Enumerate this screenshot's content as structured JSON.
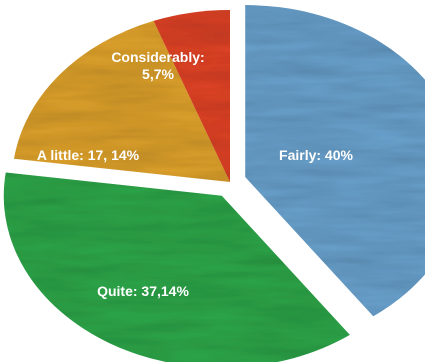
{
  "chart_data": {
    "type": "pie",
    "slices": [
      {
        "name": "Fairly",
        "label_lines": [
          "Fairly: 40%"
        ],
        "value": 40,
        "color": "#6aa3cf"
      },
      {
        "name": "Quite",
        "label_lines": [
          "Quite: 37,14%"
        ],
        "value": 37.14,
        "color": "#2ea84a"
      },
      {
        "name": "A little",
        "label_lines": [
          "A little: 17, 14%"
        ],
        "value": 17.14,
        "color": "#e0a32c"
      },
      {
        "name": "Considerably",
        "label_lines": [
          "Considerably:",
          "5,7%"
        ],
        "value": 5.7,
        "color": "#e04326"
      }
    ],
    "exploded": [
      "Fairly",
      "Quite"
    ],
    "legend": "none",
    "title": ""
  }
}
